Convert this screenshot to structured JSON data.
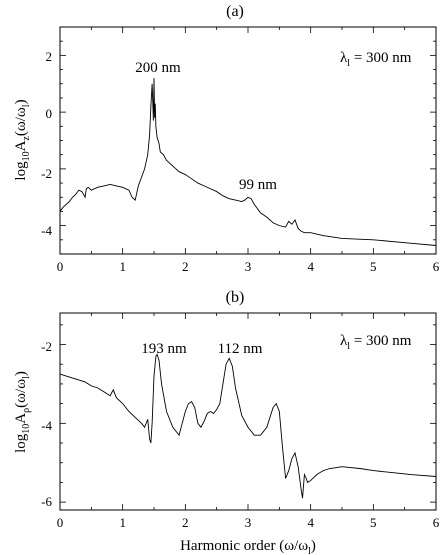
{
  "chart_data": [
    {
      "type": "line",
      "panel_label": "(a)",
      "title": "",
      "xlabel": "",
      "ylabel": {
        "base": "log",
        "sub1": "10",
        "mid": "A",
        "sub2": "z",
        "tail1": "(ω/ω",
        "sub3": "l",
        "tail2": ")"
      },
      "xlim": [
        0,
        6
      ],
      "ylim": [
        -5,
        3
      ],
      "xticks": [
        "0",
        "1",
        "2",
        "3",
        "4",
        "5",
        "6"
      ],
      "yticks": [
        "-4",
        "-2",
        "0",
        "2"
      ],
      "legend_text": {
        "prefix": "λ",
        "sub": "l",
        "suffix": " = 300 nm"
      },
      "annotations": [
        {
          "text": "200 nm",
          "x": 1.5,
          "y": 1.6
        },
        {
          "text": "99 nm",
          "x": 3.0,
          "y": -2.3
        }
      ],
      "series": [
        {
          "x": [
            0.0,
            0.05,
            0.1,
            0.15,
            0.2,
            0.25,
            0.3,
            0.35,
            0.4,
            0.42,
            0.45,
            0.5,
            0.55,
            0.6,
            0.7,
            0.8,
            0.9,
            1.0,
            1.1,
            1.15,
            1.2,
            1.25,
            1.3,
            1.35,
            1.4,
            1.43,
            1.45,
            1.47,
            1.48,
            1.49,
            1.5,
            1.51,
            1.52,
            1.53,
            1.55,
            1.58,
            1.6,
            1.65,
            1.7,
            1.8,
            1.9,
            2.0,
            2.1,
            2.2,
            2.3,
            2.4,
            2.5,
            2.6,
            2.7,
            2.8,
            2.9,
            2.95,
            3.0,
            3.05,
            3.1,
            3.2,
            3.3,
            3.4,
            3.5,
            3.6,
            3.65,
            3.7,
            3.75,
            3.8,
            3.85,
            3.9,
            4.0,
            4.2,
            4.5,
            5.0,
            5.5,
            6.0
          ],
          "y": [
            -3.5,
            -3.35,
            -3.25,
            -3.15,
            -3.0,
            -2.9,
            -2.75,
            -2.8,
            -3.0,
            -2.7,
            -2.65,
            -2.75,
            -2.7,
            -2.65,
            -2.6,
            -2.55,
            -2.6,
            -2.65,
            -2.75,
            -3.0,
            -3.1,
            -2.6,
            -2.3,
            -2.0,
            -1.5,
            -0.8,
            0.2,
            1.0,
            0.4,
            -0.3,
            1.2,
            -0.2,
            0.3,
            -0.5,
            -0.9,
            -1.1,
            -1.4,
            -1.5,
            -1.7,
            -1.9,
            -2.1,
            -2.2,
            -2.35,
            -2.5,
            -2.6,
            -2.7,
            -2.8,
            -2.95,
            -3.05,
            -3.1,
            -3.15,
            -3.1,
            -3.0,
            -3.05,
            -3.25,
            -3.55,
            -3.7,
            -3.9,
            -4.0,
            -4.05,
            -3.85,
            -3.95,
            -3.8,
            -4.1,
            -4.2,
            -4.25,
            -4.25,
            -4.35,
            -4.45,
            -4.5,
            -4.6,
            -4.7
          ]
        }
      ]
    },
    {
      "type": "line",
      "panel_label": "(b)",
      "title": "",
      "xlabel": "Harmonic  order  (ω/ω",
      "xlabel_sub": "l",
      "xlabel_tail": ")",
      "ylabel": {
        "base": "log",
        "sub1": "10",
        "mid": "A",
        "sub2": "ρ",
        "tail1": "(ω/ω",
        "sub3": "l",
        "tail2": ")"
      },
      "xlim": [
        0,
        6
      ],
      "ylim": [
        -6.2,
        -1.2
      ],
      "xticks": [
        "0",
        "1",
        "2",
        "3",
        "4",
        "5",
        "6"
      ],
      "yticks": [
        "-6",
        "-4",
        "-2"
      ],
      "legend_text": {
        "prefix": "λ",
        "sub": "l",
        "suffix": " = 300 nm"
      },
      "annotations": [
        {
          "text": "193 nm",
          "x": 1.55,
          "y": -1.75
        },
        {
          "text": "112 nm",
          "x": 2.6,
          "y": -1.75
        }
      ],
      "series": [
        {
          "x": [
            0.0,
            0.1,
            0.2,
            0.3,
            0.4,
            0.5,
            0.6,
            0.7,
            0.8,
            0.85,
            0.9,
            1.0,
            1.1,
            1.2,
            1.3,
            1.35,
            1.4,
            1.43,
            1.45,
            1.47,
            1.5,
            1.53,
            1.55,
            1.58,
            1.62,
            1.7,
            1.8,
            1.9,
            2.0,
            2.05,
            2.1,
            2.15,
            2.2,
            2.25,
            2.3,
            2.35,
            2.4,
            2.45,
            2.5,
            2.55,
            2.6,
            2.65,
            2.7,
            2.75,
            2.8,
            2.9,
            3.0,
            3.1,
            3.2,
            3.3,
            3.4,
            3.45,
            3.5,
            3.55,
            3.6,
            3.65,
            3.7,
            3.75,
            3.8,
            3.85,
            3.87,
            3.9,
            3.93,
            3.95,
            4.0,
            4.1,
            4.2,
            4.3,
            4.5,
            4.8,
            5.0,
            5.3,
            5.6,
            6.0
          ],
          "y": [
            -2.75,
            -2.8,
            -2.85,
            -2.9,
            -2.95,
            -3.05,
            -3.1,
            -3.2,
            -3.3,
            -3.15,
            -3.35,
            -3.5,
            -3.7,
            -3.85,
            -4.0,
            -4.1,
            -3.9,
            -4.4,
            -4.5,
            -4.0,
            -2.8,
            -2.3,
            -2.25,
            -2.4,
            -3.0,
            -3.7,
            -4.1,
            -4.3,
            -3.7,
            -3.5,
            -3.45,
            -3.6,
            -4.0,
            -4.1,
            -3.95,
            -3.75,
            -3.7,
            -3.75,
            -3.65,
            -3.5,
            -3.0,
            -2.5,
            -2.35,
            -2.55,
            -3.1,
            -3.8,
            -4.1,
            -4.3,
            -4.3,
            -4.1,
            -3.6,
            -3.5,
            -3.7,
            -4.6,
            -5.4,
            -5.2,
            -4.9,
            -4.75,
            -5.1,
            -5.7,
            -5.9,
            -5.3,
            -5.4,
            -5.5,
            -5.45,
            -5.3,
            -5.2,
            -5.15,
            -5.1,
            -5.15,
            -5.2,
            -5.25,
            -5.3,
            -5.35
          ]
        }
      ]
    }
  ]
}
